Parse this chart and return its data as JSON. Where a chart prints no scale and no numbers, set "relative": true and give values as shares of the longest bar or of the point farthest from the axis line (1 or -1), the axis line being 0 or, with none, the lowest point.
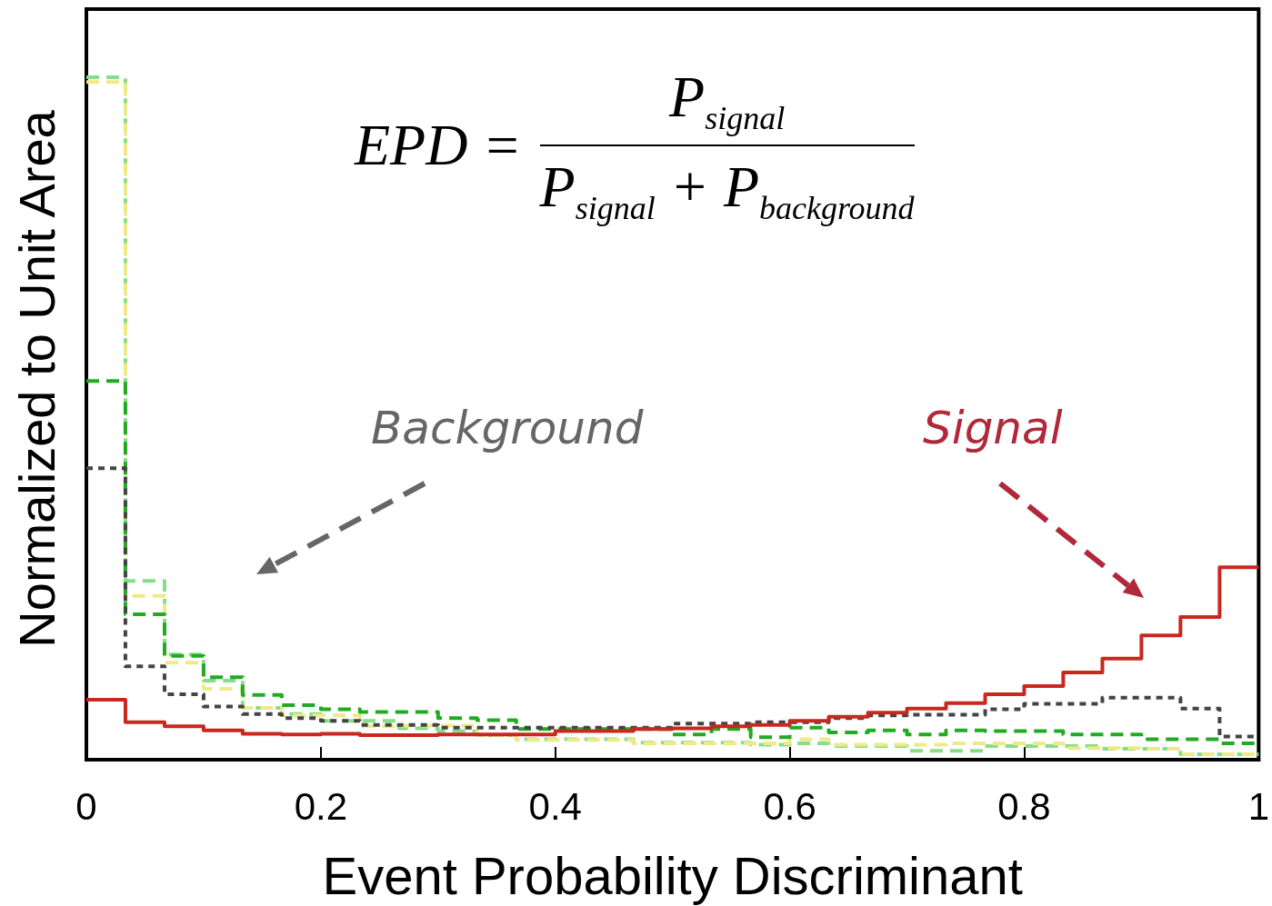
{
  "chart_data": {
    "type": "step",
    "relative": true,
    "xlabel": "Event Probability Discriminant",
    "ylabel": "Normalized to Unit Area",
    "xlim": [
      0,
      1
    ],
    "xticks": [
      0,
      0.2,
      0.4,
      0.6,
      0.8,
      1
    ],
    "x": [
      0,
      0.0333,
      0.0667,
      0.1,
      0.1333,
      0.1667,
      0.2,
      0.2333,
      0.2667,
      0.3,
      0.3333,
      0.3667,
      0.4,
      0.4333,
      0.4667,
      0.5,
      0.5333,
      0.5667,
      0.6,
      0.6333,
      0.6667,
      0.7,
      0.7333,
      0.7667,
      0.8,
      0.8333,
      0.8667,
      0.9,
      0.9333,
      0.9667,
      1
    ],
    "series": [
      {
        "color": "#88dd88",
        "line_style": "dashed",
        "values": [
          1.0,
          0.262,
          0.154,
          0.116,
          0.076,
          0.067,
          0.057,
          0.057,
          0.046,
          0.042,
          0.036,
          0.03,
          0.03,
          0.03,
          0.025,
          0.025,
          0.025,
          0.022,
          0.024,
          0.02,
          0.02,
          0.013,
          0.013,
          0.02,
          0.02,
          0.02,
          0.016,
          0.016,
          0.008,
          0.008,
          0.008
        ]
      },
      {
        "color": "#eeea88",
        "line_style": "dashed",
        "values": [
          0.993,
          0.24,
          0.142,
          0.104,
          0.076,
          0.065,
          0.065,
          0.049,
          0.05,
          0.05,
          0.036,
          0.029,
          0.029,
          0.029,
          0.024,
          0.024,
          0.024,
          0.024,
          0.03,
          0.022,
          0.022,
          0.022,
          0.024,
          0.024,
          0.024,
          0.017,
          0.017,
          0.016,
          0.008,
          0.008,
          0.008
        ]
      },
      {
        "color": "#22aa22",
        "line_style": "dashed",
        "values": [
          0.555,
          0.213,
          0.152,
          0.121,
          0.095,
          0.08,
          0.074,
          0.07,
          0.07,
          0.061,
          0.058,
          0.045,
          0.045,
          0.045,
          0.045,
          0.037,
          0.045,
          0.033,
          0.047,
          0.04,
          0.043,
          0.037,
          0.043,
          0.042,
          0.042,
          0.037,
          0.037,
          0.03,
          0.03,
          0.024,
          0.024
        ]
      },
      {
        "color": "#444444",
        "line_style": "dotted",
        "values": [
          0.427,
          0.137,
          0.096,
          0.078,
          0.067,
          0.061,
          0.057,
          0.051,
          0.051,
          0.047,
          0.047,
          0.047,
          0.047,
          0.047,
          0.047,
          0.053,
          0.053,
          0.055,
          0.055,
          0.061,
          0.065,
          0.066,
          0.066,
          0.074,
          0.082,
          0.082,
          0.091,
          0.091,
          0.075,
          0.034,
          0.034
        ]
      },
      {
        "color": "#c8281e",
        "line_style": "solid",
        "values": [
          0.088,
          0.055,
          0.049,
          0.043,
          0.038,
          0.037,
          0.038,
          0.036,
          0.036,
          0.037,
          0.037,
          0.037,
          0.042,
          0.042,
          0.045,
          0.046,
          0.049,
          0.051,
          0.057,
          0.063,
          0.069,
          0.075,
          0.083,
          0.096,
          0.108,
          0.128,
          0.148,
          0.182,
          0.209,
          0.282,
          0.282
        ]
      }
    ],
    "annotations": [
      "EPD =",
      "P$_{signal}$",
      "P$_{signal}$ + P$_{background}$",
      "Background",
      "Signal"
    ]
  }
}
